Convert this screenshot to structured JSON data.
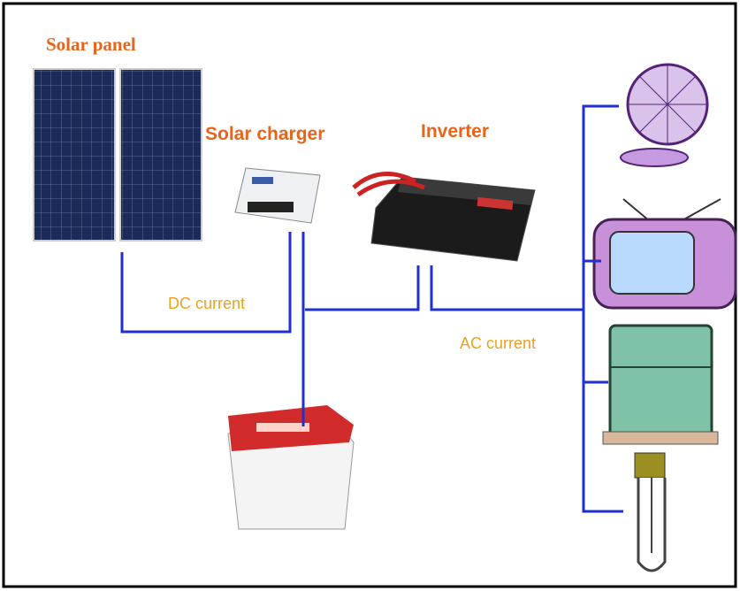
{
  "labels": {
    "solar_panel": "Solar panel",
    "solar_charger": "Solar charger",
    "inverter": "Inverter",
    "dc_current": "DC current",
    "ac_current": "AC current"
  }
}
